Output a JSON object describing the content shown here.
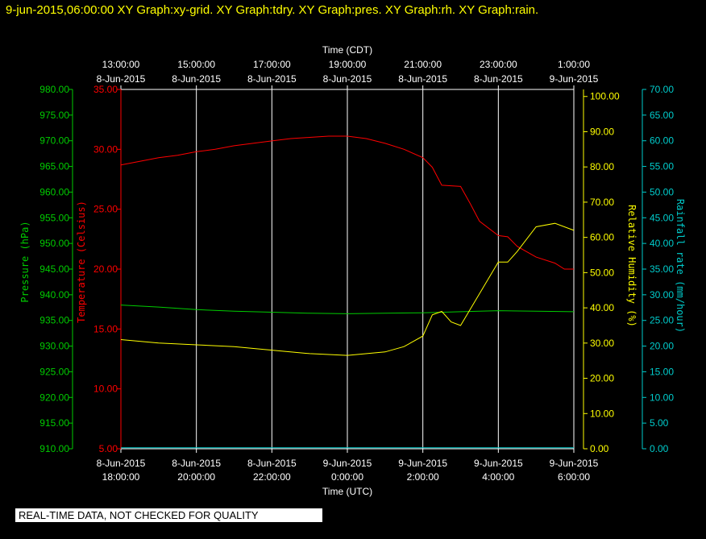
{
  "header_title": "9-jun-2015,06:00:00  XY Graph:xy-grid.  XY Graph:tdry.  XY Graph:pres.  XY Graph:rh.  XY Graph:rain.",
  "notice": "REAL-TIME DATA, NOT CHECKED FOR QUALITY",
  "colors": {
    "background": "#000000",
    "header": "#ffff00",
    "pressure": "#00cc00",
    "temperature": "#ff0000",
    "humidity": "#ffff00",
    "rain": "#00cccc",
    "grid": "#ffffff"
  },
  "chart_data": {
    "type": "line",
    "grid": true,
    "x_top": {
      "label": "Time (CDT)",
      "ticks": [
        [
          "13:00:00",
          "8-Jun-2015"
        ],
        [
          "15:00:00",
          "8-Jun-2015"
        ],
        [
          "17:00:00",
          "8-Jun-2015"
        ],
        [
          "19:00:00",
          "8-Jun-2015"
        ],
        [
          "21:00:00",
          "8-Jun-2015"
        ],
        [
          "23:00:00",
          "8-Jun-2015"
        ],
        [
          "1:00:00",
          "9-Jun-2015"
        ]
      ]
    },
    "x_bottom": {
      "label": "Time (UTC)",
      "range": [
        "2015-06-08 18:00",
        "2015-06-09 06:00"
      ],
      "ticks": [
        [
          "8-Jun-2015",
          "18:00:00"
        ],
        [
          "8-Jun-2015",
          "20:00:00"
        ],
        [
          "8-Jun-2015",
          "22:00:00"
        ],
        [
          "9-Jun-2015",
          "0:00:00"
        ],
        [
          "9-Jun-2015",
          "2:00:00"
        ],
        [
          "9-Jun-2015",
          "4:00:00"
        ],
        [
          "9-Jun-2015",
          "6:00:00"
        ]
      ]
    },
    "axes": {
      "pressure": {
        "label": "Pressure (hPa)",
        "min": 910,
        "max": 980,
        "ticks": [
          "910.00",
          "915.00",
          "920.00",
          "925.00",
          "930.00",
          "935.00",
          "940.00",
          "945.00",
          "950.00",
          "955.00",
          "960.00",
          "965.00",
          "970.00",
          "975.00",
          "980.00"
        ]
      },
      "temperature": {
        "label": "Temperature (Celsius)",
        "min": 5,
        "max": 35,
        "ticks": [
          "5.00",
          "10.00",
          "15.00",
          "20.00",
          "25.00",
          "30.00",
          "35.00"
        ]
      },
      "humidity": {
        "label": "Relative Humidity (%)",
        "min": 0,
        "max": 102,
        "ticks": [
          "0.00",
          "10.00",
          "20.00",
          "30.00",
          "40.00",
          "50.00",
          "60.00",
          "70.00",
          "80.00",
          "90.00",
          "100.00"
        ]
      },
      "rain": {
        "label": "Rainfall rate (mm/hour)",
        "min": 0,
        "max": 70,
        "ticks": [
          "0.00",
          "5.00",
          "10.00",
          "15.00",
          "20.00",
          "25.00",
          "30.00",
          "35.00",
          "40.00",
          "45.00",
          "50.00",
          "55.00",
          "60.00",
          "65.00",
          "70.00"
        ]
      }
    },
    "series": [
      {
        "key": "temperature",
        "x": [
          "2015-06-08 18:00",
          "2015-06-08 18:30",
          "2015-06-08 19:00",
          "2015-06-08 19:30",
          "2015-06-08 20:00",
          "2015-06-08 20:30",
          "2015-06-08 21:00",
          "2015-06-08 21:30",
          "2015-06-08 22:00",
          "2015-06-08 22:30",
          "2015-06-08 23:00",
          "2015-06-08 23:30",
          "2015-06-09 00:00",
          "2015-06-09 00:30",
          "2015-06-09 01:00",
          "2015-06-09 01:30",
          "2015-06-09 02:00",
          "2015-06-09 02:15",
          "2015-06-09 02:30",
          "2015-06-09 03:00",
          "2015-06-09 03:15",
          "2015-06-09 03:30",
          "2015-06-09 04:00",
          "2015-06-09 04:15",
          "2015-06-09 04:30",
          "2015-06-09 05:00",
          "2015-06-09 05:30",
          "2015-06-09 05:45",
          "2015-06-09 06:00"
        ],
        "y": [
          28.7,
          29.0,
          29.3,
          29.5,
          29.8,
          30.0,
          30.3,
          30.5,
          30.7,
          30.9,
          31.0,
          31.1,
          31.1,
          30.9,
          30.5,
          30.0,
          29.3,
          28.5,
          27.0,
          26.9,
          25.5,
          24.0,
          22.8,
          22.7,
          21.9,
          21.0,
          20.5,
          20.0,
          20.0
        ]
      },
      {
        "key": "pressure",
        "x": [
          "2015-06-08 18:00",
          "2015-06-08 19:00",
          "2015-06-08 20:00",
          "2015-06-08 21:00",
          "2015-06-08 22:00",
          "2015-06-08 23:00",
          "2015-06-09 00:00",
          "2015-06-09 01:00",
          "2015-06-09 02:00",
          "2015-06-09 03:00",
          "2015-06-09 04:00",
          "2015-06-09 05:00",
          "2015-06-09 06:00"
        ],
        "y": [
          938.0,
          937.6,
          937.1,
          936.8,
          936.6,
          936.4,
          936.3,
          936.4,
          936.5,
          936.7,
          936.9,
          936.8,
          936.7
        ]
      },
      {
        "key": "humidity",
        "x": [
          "2015-06-08 18:00",
          "2015-06-08 19:00",
          "2015-06-08 20:00",
          "2015-06-08 21:00",
          "2015-06-08 22:00",
          "2015-06-08 23:00",
          "2015-06-09 00:00",
          "2015-06-09 01:00",
          "2015-06-09 01:30",
          "2015-06-09 02:00",
          "2015-06-09 02:15",
          "2015-06-09 02:30",
          "2015-06-09 02:45",
          "2015-06-09 03:00",
          "2015-06-09 03:30",
          "2015-06-09 04:00",
          "2015-06-09 04:15",
          "2015-06-09 04:30",
          "2015-06-09 05:00",
          "2015-06-09 05:30",
          "2015-06-09 06:00"
        ],
        "y": [
          31,
          30,
          29.5,
          29,
          28,
          27,
          26.5,
          27.5,
          29,
          32,
          38,
          39,
          36,
          35,
          44,
          53,
          53,
          56,
          63,
          64,
          62
        ]
      },
      {
        "key": "rain",
        "x": [
          "2015-06-08 18:00",
          "2015-06-09 06:00"
        ],
        "y": [
          0.2,
          0.2
        ]
      }
    ]
  }
}
